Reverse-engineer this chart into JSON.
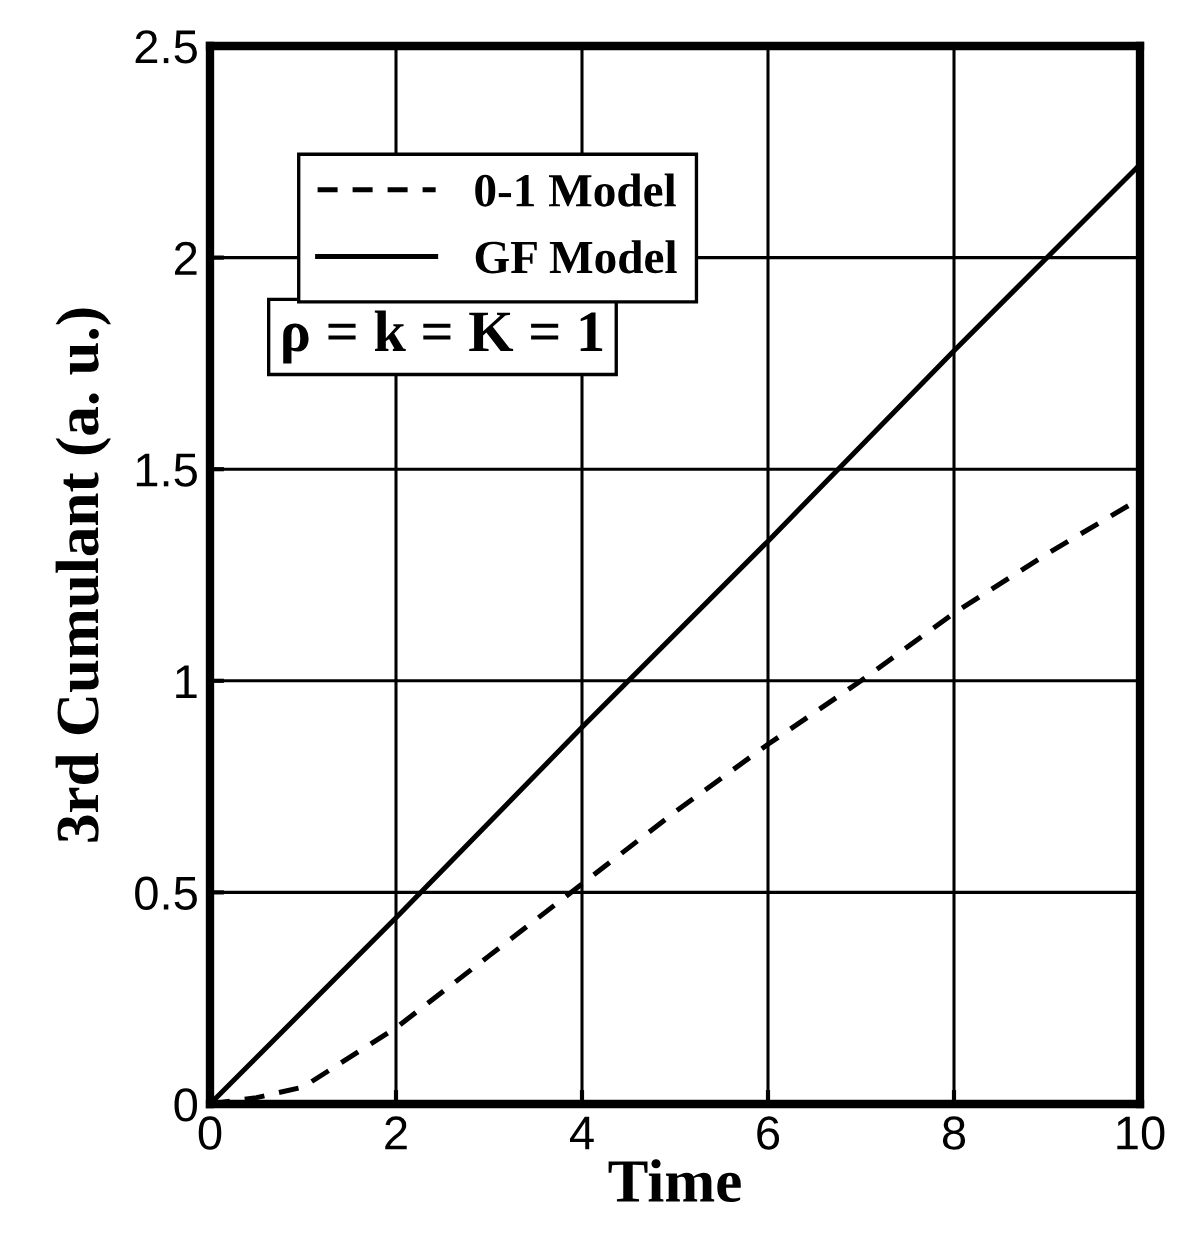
{
  "chart_data": {
    "type": "line",
    "xlabel": "Time",
    "ylabel": "3rd Cumulant (a. u.)",
    "xlim": [
      0,
      10
    ],
    "ylim": [
      0,
      2.5
    ],
    "xticks": [
      0,
      2,
      4,
      6,
      8,
      10
    ],
    "yticks": [
      0,
      0.5,
      1,
      1.5,
      2,
      2.5
    ],
    "grid": true,
    "legend": "top left",
    "series": [
      {
        "name": "0-1 Model",
        "color": "#000000",
        "line_style": "dashed",
        "x": [
          0,
          0.5,
          1,
          1.5,
          2,
          3,
          4,
          5,
          6,
          7,
          8,
          9,
          10
        ],
        "values": [
          0,
          0.015,
          0.04,
          0.11,
          0.18,
          0.35,
          0.52,
          0.69,
          0.85,
          1.0,
          1.16,
          1.3,
          1.43
        ]
      },
      {
        "name": "GF Model",
        "color": "#000000",
        "line_style": "solid",
        "x": [
          0,
          2,
          4,
          6,
          8,
          10
        ],
        "values": [
          0,
          0.44,
          0.89,
          1.33,
          1.78,
          2.22
        ]
      }
    ],
    "annotations": [
      "ρ = k = K = 1"
    ]
  }
}
